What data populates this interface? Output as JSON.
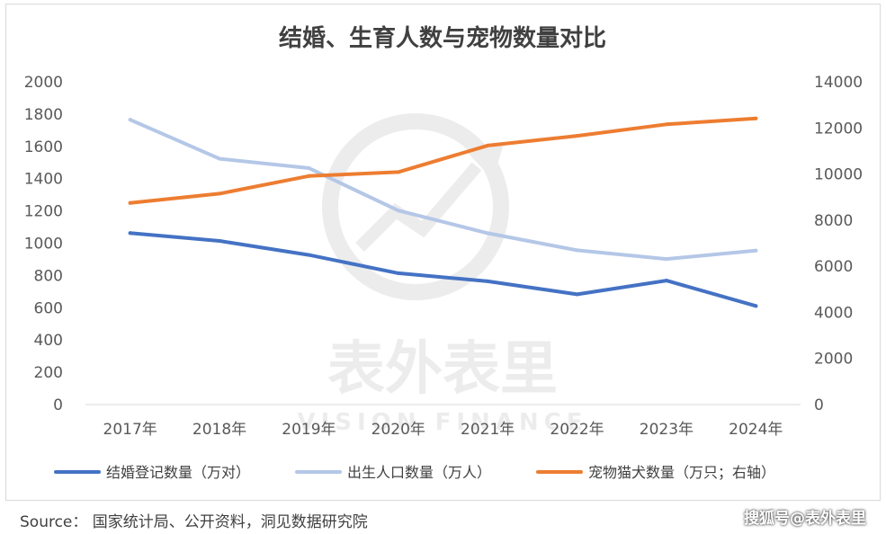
{
  "chart_data": {
    "type": "line",
    "title": "结婚、生育人数与宠物数量对比",
    "categories": [
      "2017年",
      "2018年",
      "2019年",
      "2020年",
      "2021年",
      "2022年",
      "2023年",
      "2024年"
    ],
    "y_left": {
      "range": [
        0,
        2000
      ],
      "ticks": [
        "0",
        "200",
        "400",
        "600",
        "800",
        "1000",
        "1200",
        "1400",
        "1600",
        "1800",
        "2000"
      ]
    },
    "y_right": {
      "range": [
        0,
        14000
      ],
      "ticks": [
        "0",
        "2000",
        "4000",
        "6000",
        "8000",
        "10000",
        "12000",
        "14000"
      ]
    },
    "grid": false,
    "legend_position": "bottom",
    "series": [
      {
        "name": "结婚登记数量（万对）",
        "axis": "left",
        "color": "#4472C4",
        "values": [
          1063,
          1014,
          927,
          814,
          764,
          683,
          768,
          611
        ]
      },
      {
        "name": "出生人口数量（万人）",
        "axis": "left",
        "color": "#B4C7E7",
        "values": [
          1765,
          1523,
          1465,
          1202,
          1062,
          956,
          902,
          954
        ]
      },
      {
        "name": "宠物猫犬数量（万只；右轴）",
        "axis": "right",
        "color": "#ED7D31",
        "values": [
          8746,
          9149,
          9915,
          10084,
          11235,
          11655,
          12155,
          12411
        ]
      }
    ]
  },
  "watermark": {
    "text": "表外表里",
    "subtext": "VISION FINANCE"
  },
  "source": "Source：  国家统计局、公开资料，洞见数据研究院",
  "credit": "搜狐号@表外表里"
}
